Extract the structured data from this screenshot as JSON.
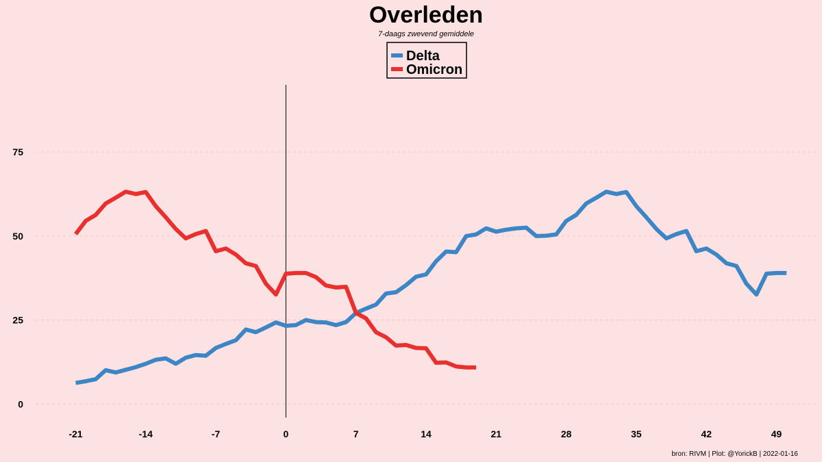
{
  "chart_data": {
    "type": "line",
    "title": "Overleden",
    "subtitle": "7-daags zwevend gemiddele",
    "caption": "bron: RIVM  | Plot: @YorickB |  2022-01-16",
    "xlabel": "",
    "ylabel": "",
    "x_ticks": [
      -21,
      -14,
      -7,
      0,
      7,
      14,
      21,
      28,
      35,
      42,
      49
    ],
    "y_ticks": [
      0,
      25,
      50,
      75
    ],
    "xlim": [
      -25,
      53
    ],
    "ylim": [
      -4,
      95
    ],
    "grid": "horizontal dashed",
    "vline_at_x": 0,
    "legend": {
      "placement": "top-center"
    },
    "series": [
      {
        "name": "Delta",
        "color": "#3d86c6",
        "x": [
          -21,
          -20,
          -19,
          -18,
          -17,
          -16,
          -15,
          -14,
          -13,
          -12,
          -11,
          -10,
          -9,
          -8,
          -7,
          -6,
          -5,
          -4,
          -3,
          -2,
          -1,
          0,
          1,
          2,
          3,
          4,
          5,
          6,
          7,
          8,
          9,
          10,
          11,
          12,
          13,
          14,
          15,
          16,
          17,
          18,
          19,
          20,
          21,
          22,
          23,
          24,
          25,
          26,
          27,
          28,
          29,
          30,
          31,
          32,
          33,
          34,
          35,
          36,
          37,
          38,
          39,
          40,
          41,
          42,
          43,
          44,
          45,
          46,
          47,
          48,
          49,
          50
        ],
        "values": [
          6.3,
          6.8,
          7.4,
          10.1,
          9.4,
          10.2,
          11.0,
          12.0,
          13.2,
          13.6,
          12.0,
          13.8,
          14.6,
          14.4,
          16.7,
          17.9,
          19.0,
          22.2,
          21.4,
          22.8,
          24.3,
          23.3,
          23.5,
          25.0,
          24.4,
          24.3,
          23.5,
          24.4,
          27.1,
          28.4,
          29.6,
          32.9,
          33.3,
          35.4,
          37.9,
          38.6,
          42.5,
          45.4,
          45.2,
          50.0,
          50.5,
          52.3,
          51.3,
          51.9,
          52.3,
          52.5,
          50.0,
          50.1,
          50.5,
          54.5,
          56.3,
          59.7,
          61.4,
          63.2,
          62.5,
          63.1,
          58.9,
          55.6,
          52.1,
          49.3,
          50.6,
          51.5,
          45.5,
          46.3,
          44.5,
          41.9,
          41.1,
          35.8,
          32.6,
          38.8,
          39.0,
          39.0
        ]
      },
      {
        "name": "Omicron",
        "color": "#e8302e",
        "x": [
          -21,
          -20,
          -19,
          -18,
          -17,
          -16,
          -15,
          -14,
          -13,
          -12,
          -11,
          -10,
          -9,
          -8,
          -7,
          -6,
          -5,
          -4,
          -3,
          -2,
          -1,
          0,
          1,
          2,
          3,
          4,
          5,
          6,
          7,
          8,
          9,
          10,
          11,
          12,
          13,
          14,
          15,
          16,
          17,
          18,
          19
        ],
        "values": [
          50.6,
          54.5,
          56.3,
          59.7,
          61.4,
          63.2,
          62.5,
          63.1,
          58.9,
          55.6,
          52.1,
          49.3,
          50.6,
          51.5,
          45.5,
          46.3,
          44.5,
          41.9,
          41.1,
          35.8,
          32.6,
          38.8,
          39.0,
          39.0,
          37.8,
          35.3,
          34.7,
          34.9,
          27.1,
          25.5,
          21.4,
          19.9,
          17.4,
          17.6,
          16.7,
          16.6,
          12.3,
          12.4,
          11.2,
          10.9,
          10.9
        ]
      }
    ]
  }
}
